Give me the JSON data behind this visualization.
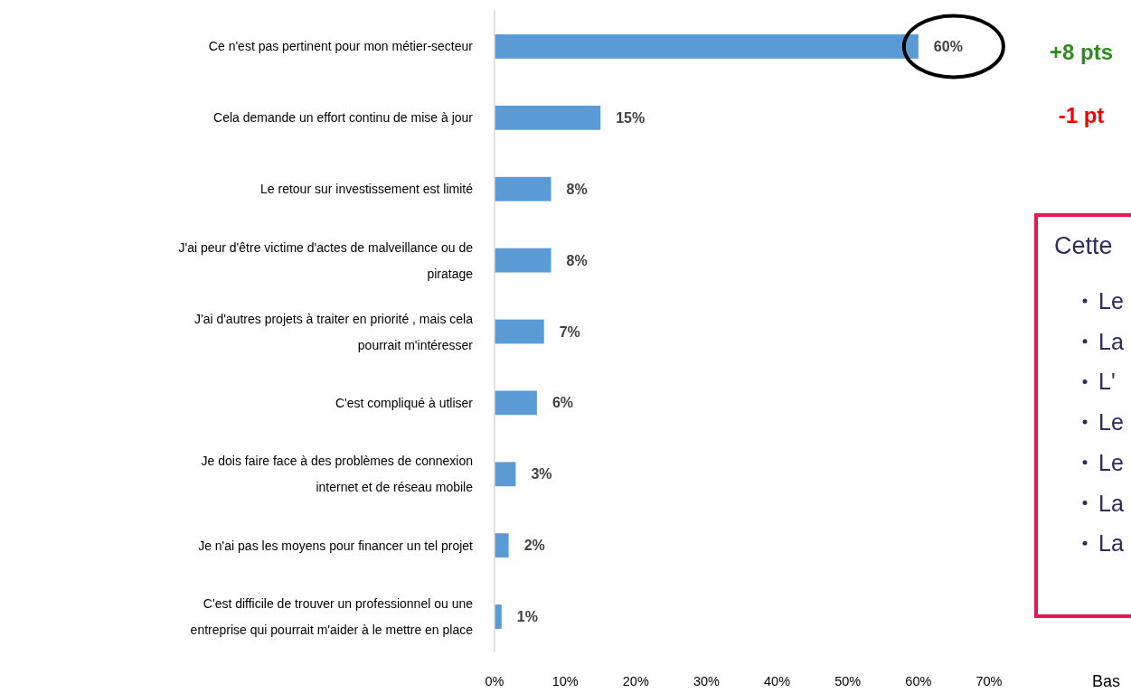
{
  "chart_data": {
    "type": "bar",
    "orientation": "horizontal",
    "categories": [
      "Ce n'est pas pertinent pour mon métier-secteur",
      "Cela demande un effort continu de mise à jour",
      "Le retour sur investissement est limité",
      "J'ai peur d'être victime d'actes de malveillance ou de piratage",
      "J'ai d'autres projets à traiter en priorité , mais cela pourrait m'intéresser",
      "C'est compliqué à utliser",
      "Je dois faire face à des problèmes de connexion internet et de réseau mobile",
      "Je n'ai pas les moyens pour financer un tel projet",
      "C'est difficile de trouver un professionnel ou une entreprise qui pourrait m'aider à le mettre en place"
    ],
    "values": [
      60,
      15,
      8,
      8,
      7,
      6,
      3,
      2,
      1
    ],
    "color": "#5b9bd5",
    "xlim": [
      0,
      70
    ],
    "xticks": [
      {
        "value": 0,
        "label": "0%"
      },
      {
        "value": 10,
        "label": "10%"
      },
      {
        "value": 20,
        "label": "20%"
      },
      {
        "value": 30,
        "label": "30%"
      },
      {
        "value": 40,
        "label": "40%"
      },
      {
        "value": 50,
        "label": "50%"
      },
      {
        "value": 60,
        "label": "60%"
      },
      {
        "value": 70,
        "label": "70%"
      }
    ],
    "value_labels": [
      "60%",
      "15%",
      "8%",
      "8%",
      "7%",
      "6%",
      "3%",
      "2%",
      "1%"
    ],
    "grid": false,
    "annotations": [
      "+8 pts",
      "-1 pt",
      "Cette",
      "Le",
      "La",
      "L'",
      "Le",
      "Le",
      "La",
      "La",
      "Bas"
    ]
  }
}
